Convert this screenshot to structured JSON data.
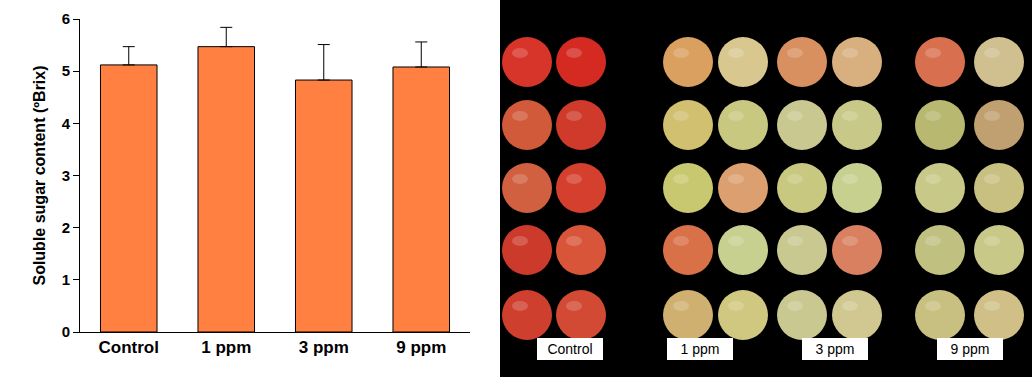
{
  "chart_data": {
    "type": "bar",
    "y_label": "Soluble sugar content (ºBrix)",
    "categories": [
      "Control",
      "1 ppm",
      "3 ppm",
      "9 ppm"
    ],
    "values": [
      5.12,
      5.47,
      4.83,
      5.08
    ],
    "errors": [
      0.35,
      0.37,
      0.68,
      0.48
    ],
    "color": "#ff8040",
    "ylim": [
      0,
      6
    ],
    "yticks": [
      0,
      1,
      2,
      3,
      4,
      5,
      6
    ],
    "grid": false
  },
  "photo": {
    "groups": [
      {
        "label": "Control",
        "fruit_colors": [
          "#d8352a",
          "#d42a22",
          "#d05a3a",
          "#cf3a2a",
          "#d06040",
          "#d5402e",
          "#cc3a2c",
          "#d8553a",
          "#cf3f2e",
          "#d24a34"
        ]
      },
      {
        "label": "1 ppm",
        "fruit_colors": [
          "#d9a060",
          "#d8c890",
          "#d0c070",
          "#c8c880",
          "#c8c870",
          "#dca070",
          "#d87048",
          "#c8d090",
          "#d0b070",
          "#d0c880"
        ]
      },
      {
        "label": "3 ppm",
        "fruit_colors": [
          "#d89060",
          "#d8b080",
          "#c8c890",
          "#c8c888",
          "#c8c880",
          "#c8d090",
          "#c8c890",
          "#d88060",
          "#c8c890",
          "#d0c890"
        ]
      },
      {
        "label": "9 ppm",
        "fruit_colors": [
          "#d87050",
          "#d0c090",
          "#b8b870",
          "#c0a070",
          "#c8c888",
          "#c8c080",
          "#c0c080",
          "#c8c888",
          "#c8c080",
          "#d0c088"
        ]
      }
    ]
  }
}
